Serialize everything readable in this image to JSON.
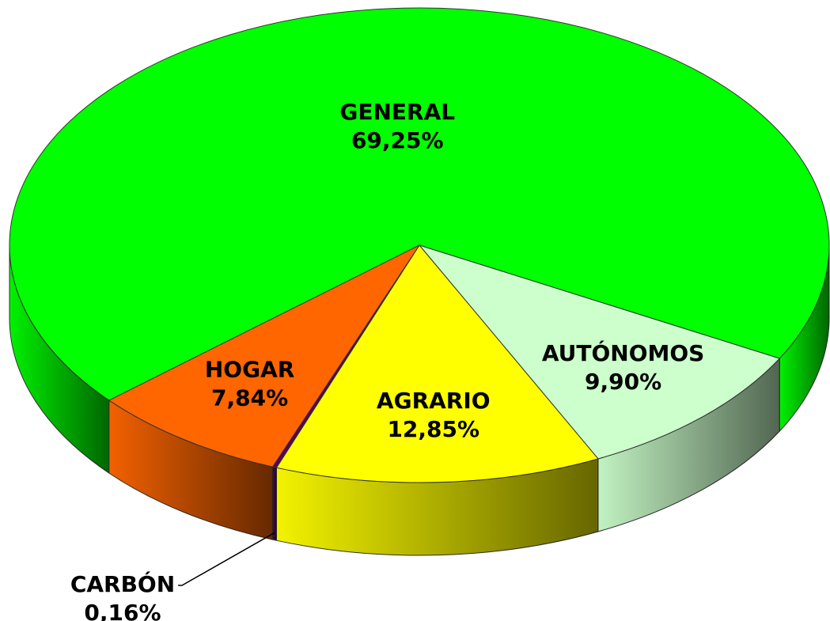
{
  "chart_data": {
    "type": "pie",
    "categories": [
      "GENERAL",
      "AUTÓNOMOS",
      "AGRARIO",
      "CARBÓN",
      "HOGAR"
    ],
    "values": [
      69.25,
      9.9,
      12.85,
      0.16,
      7.84
    ],
    "value_labels": [
      "69,25%",
      "9,90%",
      "12,85%",
      "0,16%",
      "7,84%"
    ],
    "colors": [
      "#00ff00",
      "#ccffcc",
      "#ffff00",
      "#5a005a",
      "#ff6600"
    ]
  }
}
